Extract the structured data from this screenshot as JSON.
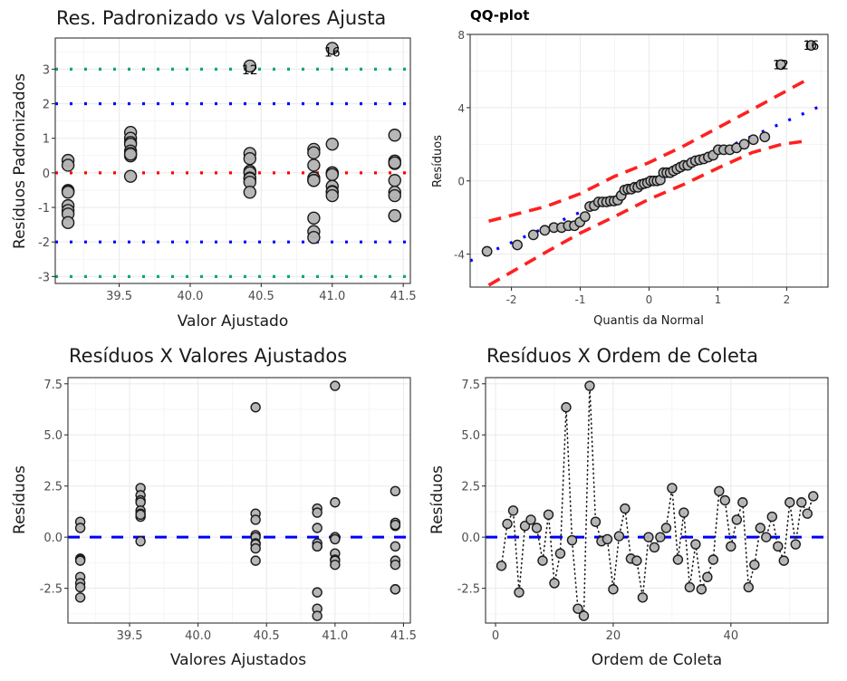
{
  "chart_data": [
    {
      "id": "std_vs_fitted",
      "type": "scatter",
      "title": "Res. Padronizado vs Valores Ajusta",
      "xlabel": "Valor Ajustado",
      "ylabel": "Resíduos Padronizados",
      "xlim": [
        39.05,
        41.55
      ],
      "ylim": [
        -3.2,
        3.9
      ],
      "xticks": [
        39.5,
        40.0,
        40.5,
        41.0,
        41.5
      ],
      "xtick_labels": [
        "39.5",
        "40.0",
        "40.5",
        "41.0",
        "41.5"
      ],
      "yticks": [
        -3,
        -2,
        -1,
        0,
        1,
        2,
        3
      ],
      "ytick_labels": [
        "-3",
        "-2",
        "-1",
        "0",
        "1",
        "2",
        "3"
      ],
      "grid": true,
      "hlines": [
        {
          "y": 3,
          "color": "#00a67e",
          "style": "dotted"
        },
        {
          "y": 2,
          "color": "#0000ff",
          "style": "dotted"
        },
        {
          "y": 0,
          "color": "#ff0000",
          "style": "dotted"
        },
        {
          "y": -2,
          "color": "#0000ff",
          "style": "dotted"
        },
        {
          "y": -3,
          "color": "#00a67e",
          "style": "dotted"
        }
      ],
      "groups": [
        {
          "x": 39.14,
          "values": [
            0.36,
            0.22,
            -0.51,
            -0.54,
            -0.56,
            -0.95,
            -1.09,
            -1.19,
            -1.44
          ]
        },
        {
          "x": 39.58,
          "values": [
            1.17,
            1.0,
            0.88,
            0.83,
            0.63,
            0.56,
            0.49,
            0.54,
            -0.1
          ]
        },
        {
          "x": 40.42,
          "values": [
            3.09,
            0.56,
            0.41,
            0.05,
            0.0,
            -0.15,
            -0.17,
            -0.27,
            -0.56
          ]
        },
        {
          "x": 40.87,
          "values": [
            0.68,
            0.58,
            0.22,
            -0.15,
            -0.22,
            -0.22,
            -1.31,
            -1.7,
            -1.87
          ]
        },
        {
          "x": 41.0,
          "values": [
            3.6,
            0.83,
            0.0,
            0.0,
            -0.05,
            -0.39,
            -0.54,
            -0.56,
            -0.66
          ]
        },
        {
          "x": 41.44,
          "values": [
            1.09,
            0.34,
            0.27,
            0.29,
            -0.22,
            -0.56,
            -0.66,
            -1.24,
            -1.24
          ]
        }
      ],
      "annotations": [
        {
          "text": "12",
          "x": 40.42,
          "y": 3.09
        },
        {
          "text": "16",
          "x": 41.0,
          "y": 3.6
        }
      ],
      "point_fill": "#b3b3b3",
      "point_stroke": "#1a1a1a"
    },
    {
      "id": "qqplot",
      "type": "scatter",
      "title": "QQ-plot",
      "xlabel": "Quantis da Normal",
      "ylabel": "Resíduos",
      "xlim": [
        -2.6,
        2.6
      ],
      "ylim": [
        -5.8,
        8.0
      ],
      "xticks": [
        -2,
        -1,
        0,
        1,
        2
      ],
      "xtick_labels": [
        "-2",
        "-1",
        "0",
        "1",
        "2"
      ],
      "yticks": [
        -4,
        0,
        4,
        8
      ],
      "ytick_labels": [
        "-4",
        "0",
        "4",
        "8"
      ],
      "grid": true,
      "reference_line": {
        "slope": 1.66,
        "intercept": -0.05,
        "color": "#0000ff",
        "style": "dotted"
      },
      "confidence_band": {
        "color": "#ff2020",
        "style": "dashed",
        "upper": [
          [
            -2.33,
            -2.2
          ],
          [
            -1.5,
            -1.4
          ],
          [
            -1.0,
            -0.7
          ],
          [
            -0.5,
            0.25
          ],
          [
            0.0,
            1.0
          ],
          [
            0.5,
            1.9
          ],
          [
            1.0,
            2.9
          ],
          [
            1.5,
            3.9
          ],
          [
            2.33,
            5.6
          ]
        ],
        "lower": [
          [
            -2.33,
            -5.7
          ],
          [
            -1.5,
            -3.9
          ],
          [
            -1.0,
            -2.85
          ],
          [
            -0.5,
            -1.95
          ],
          [
            0.0,
            -1.0
          ],
          [
            0.5,
            -0.2
          ],
          [
            1.0,
            0.7
          ],
          [
            1.5,
            1.55
          ],
          [
            1.93,
            2.0
          ],
          [
            2.33,
            2.2
          ]
        ]
      },
      "values": [
        -3.85,
        -3.5,
        -2.95,
        -2.7,
        -2.55,
        -2.55,
        -2.45,
        -2.45,
        -2.25,
        -1.95,
        -1.4,
        -1.35,
        -1.15,
        -1.15,
        -1.15,
        -1.1,
        -1.1,
        -1.05,
        -0.8,
        -0.5,
        -0.45,
        -0.45,
        -0.35,
        -0.35,
        -0.2,
        -0.15,
        -0.1,
        0.0,
        0.0,
        0.0,
        0.05,
        0.45,
        0.45,
        0.45,
        0.55,
        0.65,
        0.75,
        0.85,
        0.85,
        1.0,
        1.1,
        1.15,
        1.2,
        1.3,
        1.4,
        1.7,
        1.7,
        1.7,
        1.8,
        2.0,
        2.25,
        2.4,
        6.35,
        7.4
      ],
      "annotations": [
        {
          "text": "12",
          "index": 52
        },
        {
          "text": "16",
          "index": 53
        }
      ],
      "point_fill": "#b3b3b3",
      "point_stroke": "#1a1a1a"
    },
    {
      "id": "res_vs_fitted",
      "type": "scatter",
      "title": "Resíduos X Valores Ajustados",
      "xlabel": "Valores Ajustados",
      "ylabel": "Resíduos",
      "xlim": [
        39.05,
        41.55
      ],
      "ylim": [
        -4.2,
        7.8
      ],
      "xticks": [
        39.5,
        40.0,
        40.5,
        41.0,
        41.5
      ],
      "xtick_labels": [
        "39.5",
        "40.0",
        "40.5",
        "41.0",
        "41.5"
      ],
      "yticks": [
        -2.5,
        0.0,
        2.5,
        5.0,
        7.5
      ],
      "ytick_labels": [
        "-2.5",
        "0.0",
        "2.5",
        "5.0",
        "7.5"
      ],
      "grid": true,
      "hline": {
        "y": 0,
        "color": "#0000ff",
        "style": "dashed"
      },
      "groups": [
        {
          "x": 39.14,
          "values": [
            0.75,
            0.45,
            -1.05,
            -1.1,
            -1.15,
            -1.95,
            -2.25,
            -2.45,
            -2.95
          ]
        },
        {
          "x": 39.58,
          "values": [
            2.4,
            2.05,
            1.8,
            1.7,
            1.3,
            1.15,
            1.0,
            1.1,
            -0.2
          ]
        },
        {
          "x": 40.42,
          "values": [
            6.35,
            1.15,
            0.85,
            0.1,
            0.0,
            -0.3,
            -0.35,
            -0.55,
            -1.15
          ]
        },
        {
          "x": 40.87,
          "values": [
            1.4,
            1.2,
            0.45,
            -0.3,
            -0.45,
            -0.45,
            -2.7,
            -3.5,
            -3.85
          ]
        },
        {
          "x": 41.0,
          "values": [
            7.4,
            1.7,
            0.0,
            0.0,
            -0.1,
            -0.8,
            -1.1,
            -1.15,
            -1.35
          ]
        },
        {
          "x": 41.44,
          "values": [
            2.25,
            0.7,
            0.55,
            0.6,
            -0.45,
            -1.15,
            -1.35,
            -2.55,
            -2.55
          ]
        }
      ],
      "point_fill": "#b3b3b3",
      "point_stroke": "#1a1a1a"
    },
    {
      "id": "res_vs_order",
      "type": "line",
      "title": "Resíduos X Ordem de Coleta",
      "xlabel": "Ordem de Coleta",
      "ylabel": "Resíduos",
      "xlim": [
        -1.7,
        56.5
      ],
      "ylim": [
        -4.2,
        7.8
      ],
      "xticks": [
        0,
        20,
        40
      ],
      "xtick_labels": [
        "0",
        "20",
        "40"
      ],
      "yticks": [
        -2.5,
        0.0,
        2.5,
        5.0,
        7.5
      ],
      "ytick_labels": [
        "-2.5",
        "0.0",
        "2.5",
        "5.0",
        "7.5"
      ],
      "grid": true,
      "hline": {
        "y": 0,
        "color": "#0000ff",
        "style": "dashed"
      },
      "x": [
        1,
        2,
        3,
        4,
        5,
        6,
        7,
        8,
        9,
        10,
        11,
        12,
        13,
        14,
        15,
        16,
        17,
        18,
        19,
        20,
        21,
        22,
        23,
        24,
        25,
        26,
        27,
        28,
        29,
        30,
        31,
        32,
        33,
        34,
        35,
        36,
        37,
        38,
        39,
        40,
        41,
        42,
        43,
        44,
        45,
        46,
        47,
        48,
        49,
        50,
        51,
        52,
        53,
        54
      ],
      "values": [
        -1.4,
        0.65,
        1.3,
        -2.7,
        0.55,
        0.85,
        0.45,
        -1.15,
        1.1,
        -2.25,
        -0.8,
        6.35,
        -0.15,
        -3.5,
        -3.85,
        7.4,
        0.75,
        -0.2,
        -0.1,
        -2.55,
        0.05,
        1.4,
        -1.05,
        -1.15,
        -2.95,
        0.0,
        -0.5,
        0.0,
        0.45,
        2.4,
        -1.1,
        1.2,
        -2.45,
        -0.35,
        -2.55,
        -1.95,
        -1.1,
        2.25,
        1.8,
        -0.45,
        0.85,
        1.7,
        -2.45,
        -1.35,
        0.45,
        0.0,
        1.0,
        -0.45,
        -1.15,
        1.7,
        -0.35,
        1.7,
        1.15,
        2.0
      ],
      "line_style": "dotted",
      "line_color": "#1a1a1a",
      "point_fill": "#b3b3b3",
      "point_stroke": "#1a1a1a"
    }
  ]
}
